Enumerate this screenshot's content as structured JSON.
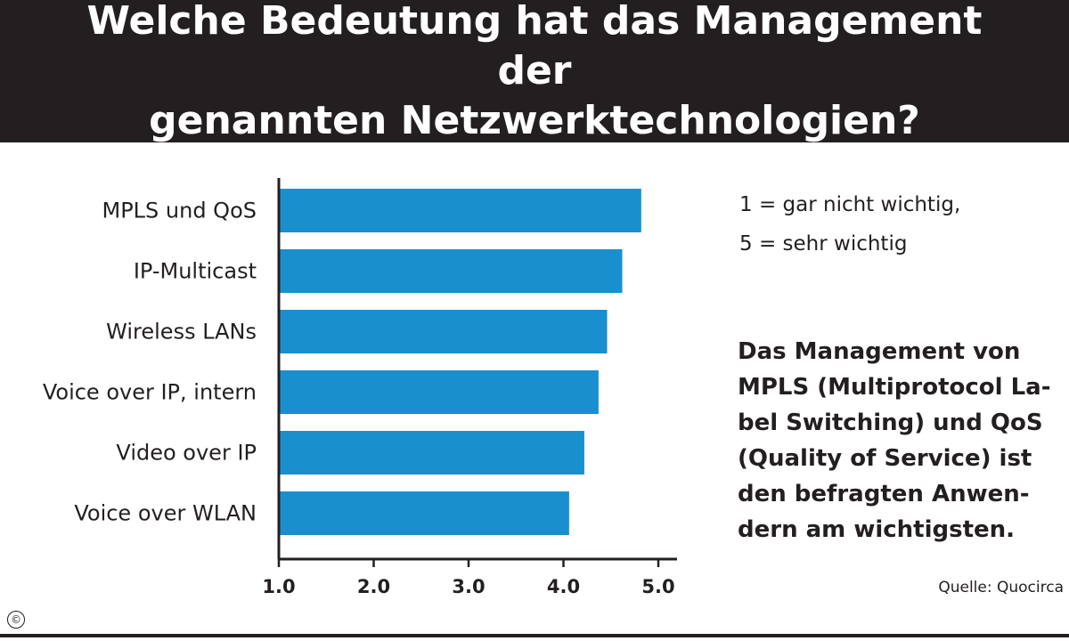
{
  "title": "Welche Bedeutung hat das Management der\ngenannten Netzwerktechnologien?",
  "legend": {
    "line1": "1 = gar nicht wichtig,",
    "line2": "5 = sehr wichtig"
  },
  "note": "Das Management von\nMPLS (Multiprotocol La-\nbel Switching) und QoS\n(Quality of Service) ist\nden befragten Anwen-\ndern am wichtigsten.",
  "source": "Quelle: Quocirca",
  "copyright": "©",
  "colors": {
    "bar": "#1a8fce",
    "title_band": "#231f20",
    "text": "#231f20"
  },
  "chart_data": {
    "type": "bar",
    "orientation": "horizontal",
    "categories": [
      "MPLS und QoS",
      "IP-Multicast",
      "Wireless LANs",
      "Voice over IP, intern",
      "Video over IP",
      "Voice over WLAN"
    ],
    "values": [
      4.82,
      4.62,
      4.46,
      4.37,
      4.22,
      4.06
    ],
    "xlim": [
      1.0,
      5.0
    ],
    "xticks": [
      "1.0",
      "2.0",
      "3.0",
      "4.0",
      "5.0"
    ],
    "grid": false
  }
}
